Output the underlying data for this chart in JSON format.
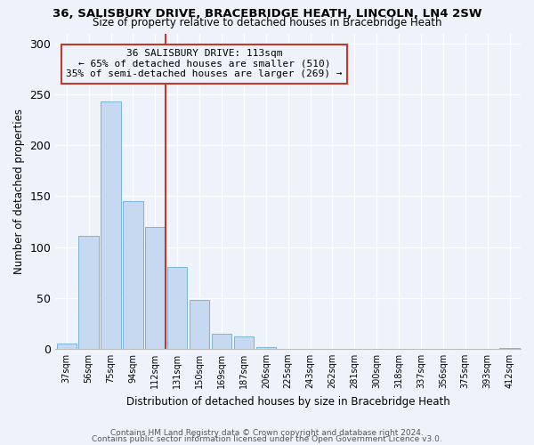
{
  "title1": "36, SALISBURY DRIVE, BRACEBRIDGE HEATH, LINCOLN, LN4 2SW",
  "title2": "Size of property relative to detached houses in Bracebridge Heath",
  "xlabel": "Distribution of detached houses by size in Bracebridge Heath",
  "ylabel": "Number of detached properties",
  "bin_labels": [
    "37sqm",
    "56sqm",
    "75sqm",
    "94sqm",
    "112sqm",
    "131sqm",
    "150sqm",
    "169sqm",
    "187sqm",
    "206sqm",
    "225sqm",
    "243sqm",
    "262sqm",
    "281sqm",
    "300sqm",
    "318sqm",
    "337sqm",
    "356sqm",
    "375sqm",
    "393sqm",
    "412sqm"
  ],
  "bar_heights": [
    5,
    111,
    243,
    145,
    120,
    80,
    48,
    15,
    12,
    2,
    0,
    0,
    0,
    0,
    0,
    0,
    0,
    0,
    0,
    0,
    1
  ],
  "bar_color": "#c6d9f0",
  "bar_edge_color": "#7ab4d8",
  "highlight_bar_index": 4,
  "highlight_edge_color": "#c0392b",
  "annotation_text": "36 SALISBURY DRIVE: 113sqm\n← 65% of detached houses are smaller (510)\n35% of semi-detached houses are larger (269) →",
  "annotation_box_edge": "#c0392b",
  "ylim": [
    0,
    310
  ],
  "yticks": [
    0,
    50,
    100,
    150,
    200,
    250,
    300
  ],
  "footer1": "Contains HM Land Registry data © Crown copyright and database right 2024.",
  "footer2": "Contains public sector information licensed under the Open Government Licence v3.0.",
  "bg_color": "#eef3fb"
}
